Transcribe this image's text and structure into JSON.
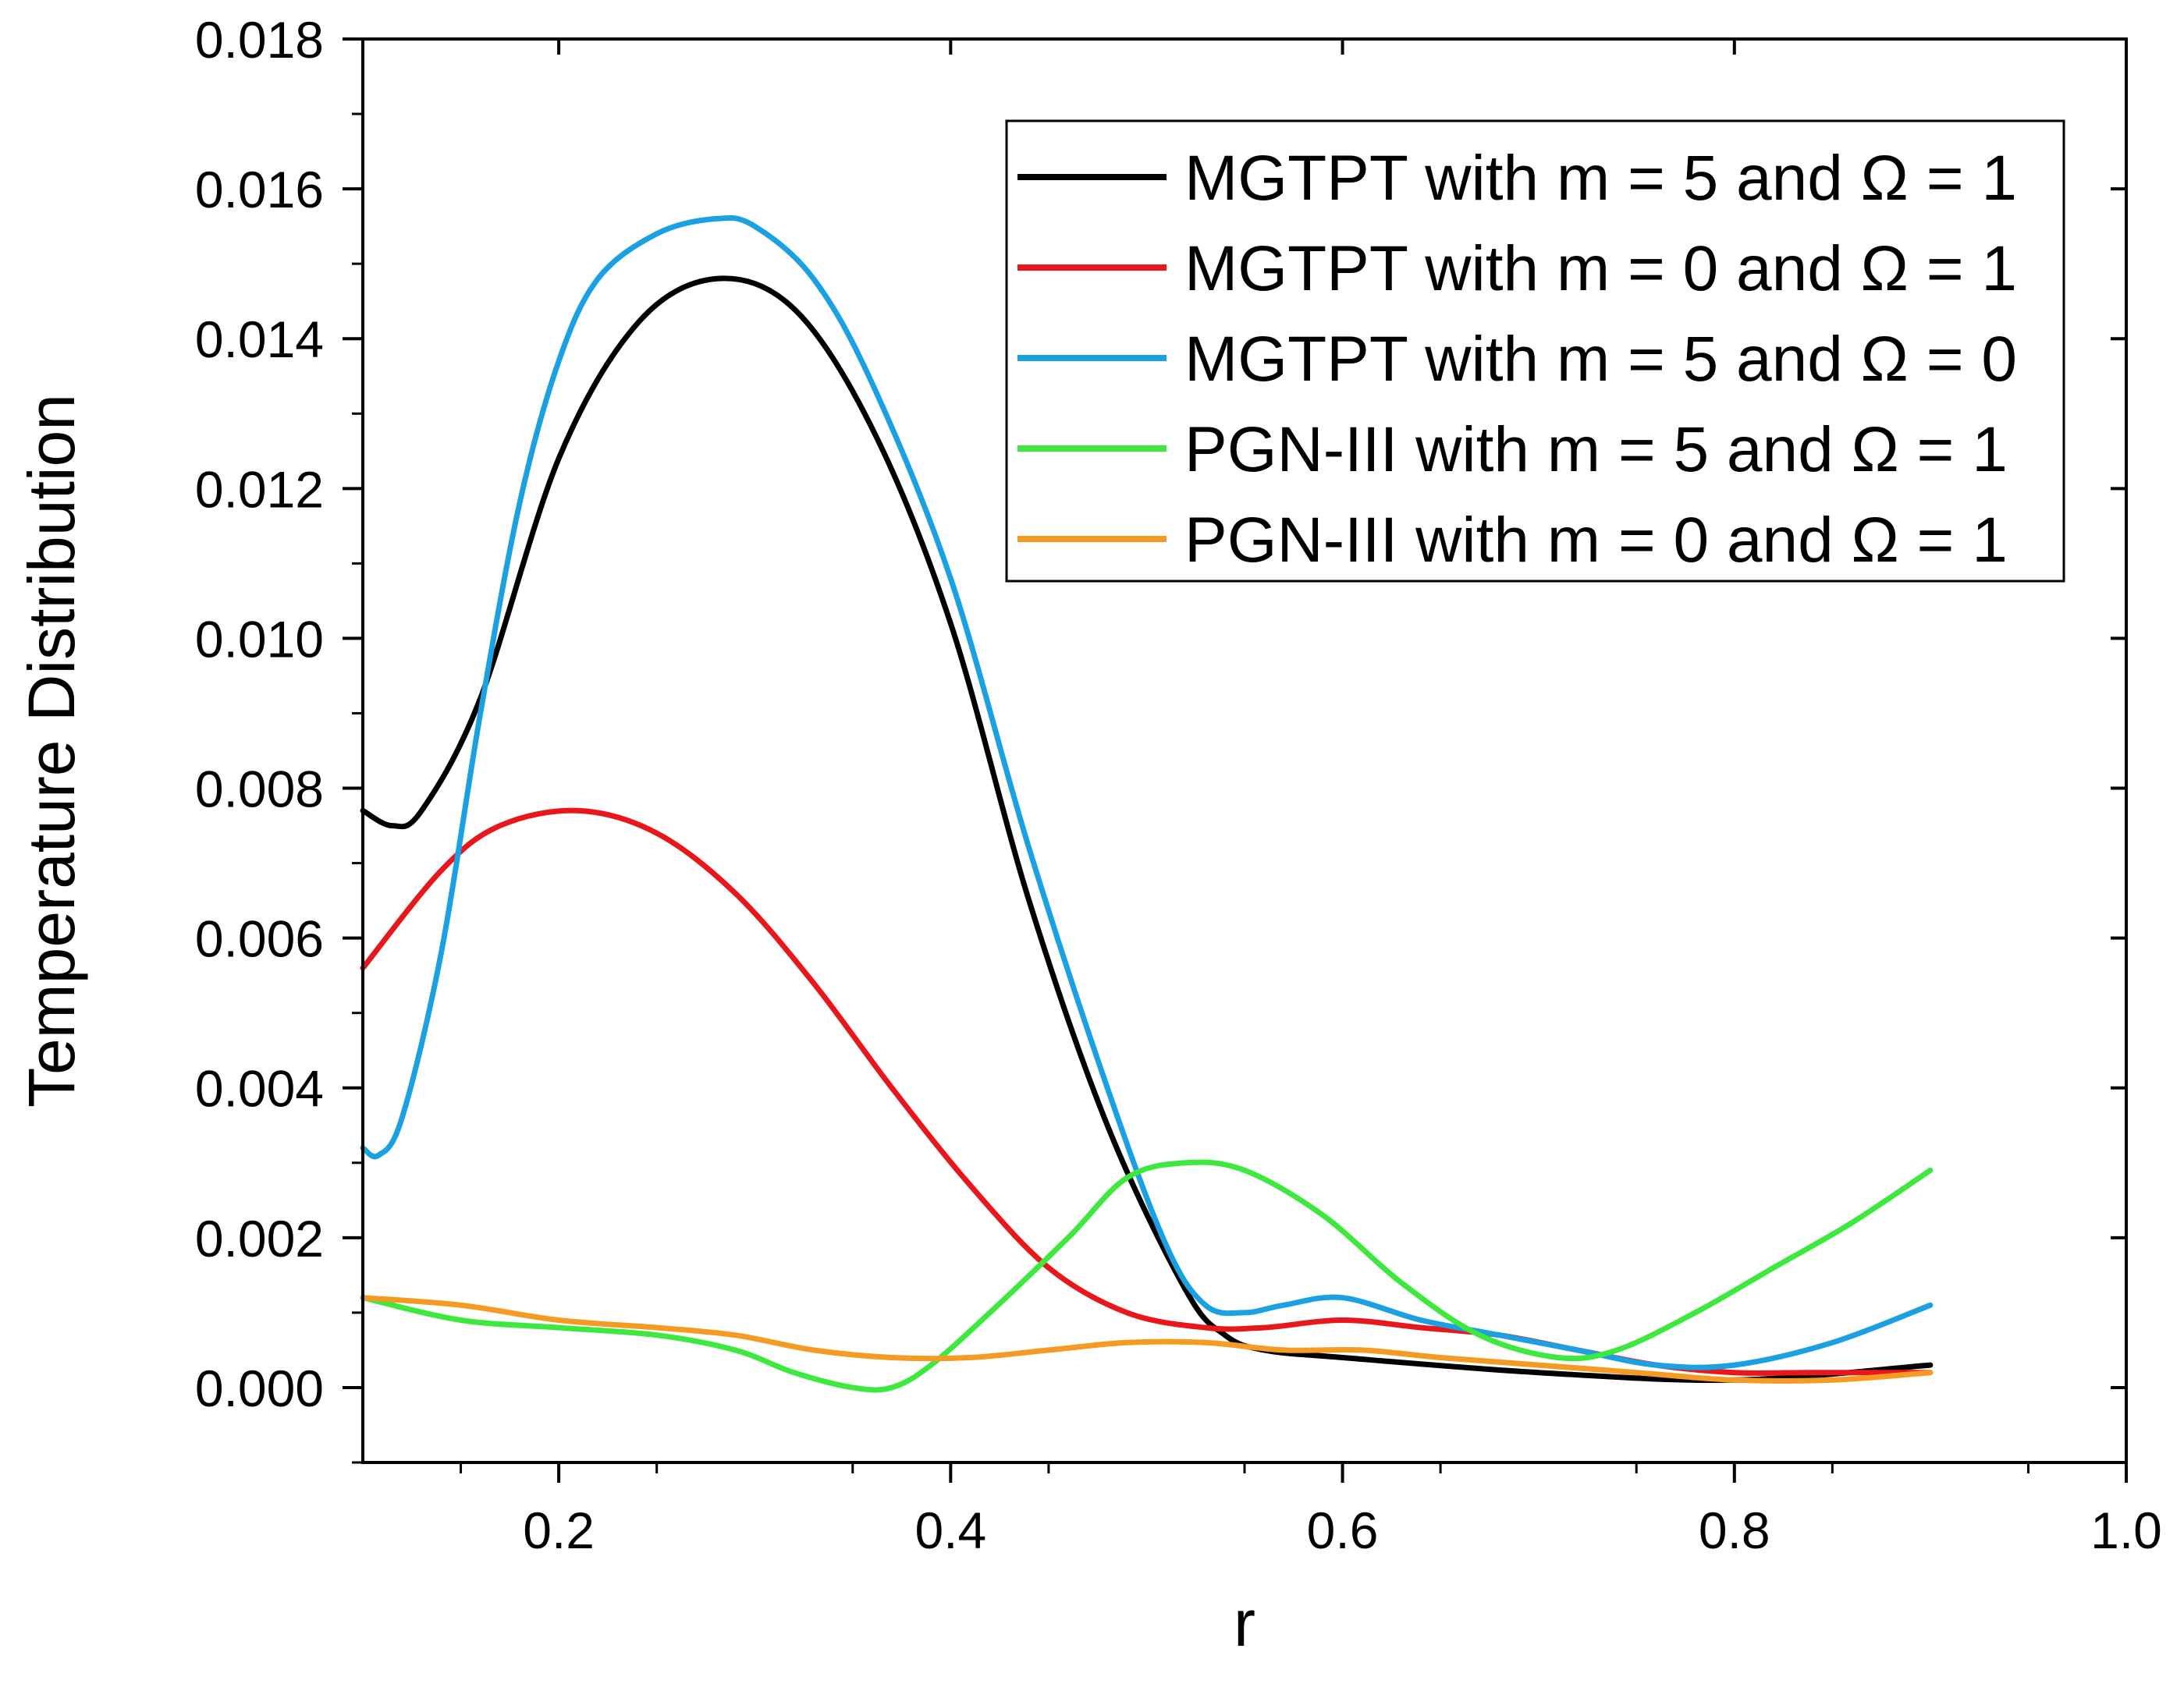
{
  "chart_data": {
    "type": "line",
    "title": "",
    "xlabel": "r",
    "ylabel": "Temperature Distribution",
    "xlim": [
      0.1,
      1.0
    ],
    "ylim": [
      -0.001,
      0.018
    ],
    "xticks": [
      0.2,
      0.4,
      0.6,
      0.8,
      1.0
    ],
    "xtick_labels": [
      "0.2",
      "0.4",
      "0.6",
      "0.8",
      "1.0"
    ],
    "yticks": [
      0.0,
      0.002,
      0.004,
      0.006,
      0.008,
      0.01,
      0.012,
      0.014,
      0.016,
      0.018
    ],
    "ytick_labels": [
      "0.000",
      "0.002",
      "0.004",
      "0.006",
      "0.008",
      "0.010",
      "0.012",
      "0.014",
      "0.016",
      "0.018"
    ],
    "grid": false,
    "legend_position": "top-right",
    "series": [
      {
        "name": "MGTPT with m = 5 and Ω = 1",
        "color": "#000000",
        "x": [
          0.1,
          0.115,
          0.13,
          0.16,
          0.2,
          0.24,
          0.28,
          0.32,
          0.36,
          0.4,
          0.44,
          0.48,
          0.52,
          0.54,
          0.56,
          0.6,
          0.7,
          0.8,
          0.9
        ],
        "y": [
          0.0077,
          0.0075,
          0.0077,
          0.0092,
          0.0124,
          0.0142,
          0.0148,
          0.0144,
          0.0128,
          0.0102,
          0.0065,
          0.0035,
          0.0013,
          0.0007,
          0.0005,
          0.0004,
          0.0002,
          0.0001,
          0.0003
        ]
      },
      {
        "name": "MGTPT with m = 0 and Ω = 1",
        "color": "#e8171b",
        "x": [
          0.1,
          0.14,
          0.17,
          0.21,
          0.25,
          0.29,
          0.33,
          0.37,
          0.41,
          0.45,
          0.49,
          0.53,
          0.56,
          0.6,
          0.64,
          0.68,
          0.72,
          0.76,
          0.8,
          0.84,
          0.9
        ],
        "y": [
          0.0056,
          0.0069,
          0.0075,
          0.0077,
          0.0074,
          0.0066,
          0.0054,
          0.004,
          0.0027,
          0.0016,
          0.001,
          0.0008,
          0.0008,
          0.0009,
          0.0008,
          0.0007,
          0.0005,
          0.0003,
          0.0002,
          0.0002,
          0.0002
        ]
      },
      {
        "name": "MGTPT with m = 5 and Ω = 0",
        "color": "#1ba1e2",
        "x": [
          0.1,
          0.108,
          0.12,
          0.14,
          0.16,
          0.18,
          0.2,
          0.22,
          0.25,
          0.28,
          0.3,
          0.33,
          0.36,
          0.4,
          0.44,
          0.48,
          0.51,
          0.53,
          0.55,
          0.57,
          0.6,
          0.64,
          0.68,
          0.72,
          0.76,
          0.8,
          0.85,
          0.9
        ],
        "y": [
          0.0032,
          0.0031,
          0.0036,
          0.0058,
          0.009,
          0.0118,
          0.0137,
          0.0148,
          0.0154,
          0.0156,
          0.0155,
          0.0148,
          0.0134,
          0.0108,
          0.0072,
          0.004,
          0.0019,
          0.0011,
          0.001,
          0.0011,
          0.0012,
          0.0009,
          0.0007,
          0.0005,
          0.0003,
          0.0003,
          0.0006,
          0.0011
        ]
      },
      {
        "name": "PGN-III with m = 5 and Ω = 1",
        "color": "#3fe83f",
        "x": [
          0.1,
          0.15,
          0.2,
          0.25,
          0.29,
          0.32,
          0.35,
          0.37,
          0.39,
          0.42,
          0.46,
          0.49,
          0.52,
          0.55,
          0.59,
          0.63,
          0.67,
          0.71,
          0.74,
          0.78,
          0.82,
          0.86,
          0.9
        ],
        "y": [
          0.0012,
          0.0009,
          0.0008,
          0.0007,
          0.0005,
          0.0002,
          0.0,
          0.0,
          0.0003,
          0.001,
          0.002,
          0.0028,
          0.003,
          0.0029,
          0.0023,
          0.0014,
          0.0007,
          0.0004,
          0.0005,
          0.001,
          0.0016,
          0.0022,
          0.0029
        ]
      },
      {
        "name": "PGN-III with m = 0 and Ω = 1",
        "color": "#f59a23",
        "x": [
          0.1,
          0.15,
          0.2,
          0.25,
          0.29,
          0.33,
          0.37,
          0.41,
          0.45,
          0.49,
          0.53,
          0.57,
          0.61,
          0.65,
          0.7,
          0.75,
          0.8,
          0.85,
          0.9
        ],
        "y": [
          0.0012,
          0.0011,
          0.0009,
          0.0008,
          0.0007,
          0.0005,
          0.0004,
          0.0004,
          0.0005,
          0.0006,
          0.0006,
          0.0005,
          0.0005,
          0.0004,
          0.0003,
          0.0002,
          0.0001,
          0.0001,
          0.0002
        ]
      }
    ]
  }
}
